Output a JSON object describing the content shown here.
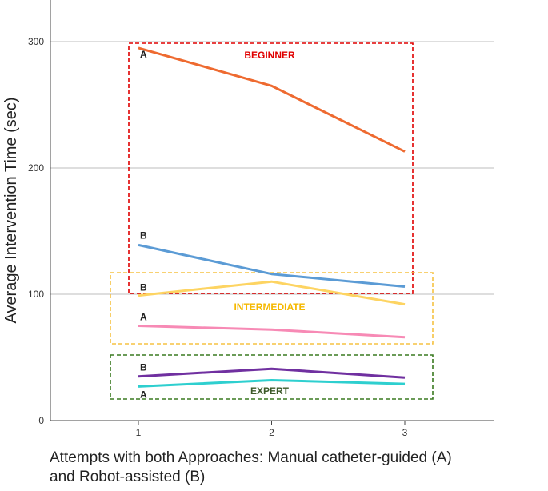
{
  "chart_data": {
    "type": "line",
    "title": "",
    "ylabel": "Average Intervention Time (sec)",
    "xlabel_line1": "Attempts with both Approaches: Manual catheter-guided (A)",
    "xlabel_line2": "and Robot-assisted (B)",
    "x": [
      1,
      2,
      3
    ],
    "x_ticks": [
      "1",
      "2",
      "3"
    ],
    "y_ticks": [
      "0",
      "100",
      "200",
      "300"
    ],
    "ylim": [
      0,
      330
    ],
    "grid": true,
    "series": [
      {
        "group": "BEGINNER",
        "label": "A",
        "color": "#ee6a30",
        "values": [
          295,
          265,
          213
        ]
      },
      {
        "group": "BEGINNER",
        "label": "B",
        "color": "#5b9bd5",
        "values": [
          139,
          116,
          106
        ]
      },
      {
        "group": "INTERMEDIATE",
        "label": "B",
        "color": "#fdd462",
        "values": [
          99,
          110,
          92
        ]
      },
      {
        "group": "INTERMEDIATE",
        "label": "A",
        "color": "#f78ab5",
        "values": [
          75,
          72,
          66
        ]
      },
      {
        "group": "EXPERT",
        "label": "B",
        "color": "#7030a0",
        "values": [
          35,
          41,
          34
        ]
      },
      {
        "group": "EXPERT",
        "label": "A",
        "color": "#2ecfcf",
        "values": [
          27,
          32,
          29
        ]
      }
    ],
    "groups": [
      {
        "name": "BEGINNER",
        "color": "#e00000",
        "label_color": "#e00000"
      },
      {
        "name": "INTERMEDIATE",
        "color": "#f5c242",
        "label_color": "#f5b800"
      },
      {
        "name": "EXPERT",
        "color": "#3a7a20",
        "label_color": "#3d5a2a"
      }
    ]
  }
}
